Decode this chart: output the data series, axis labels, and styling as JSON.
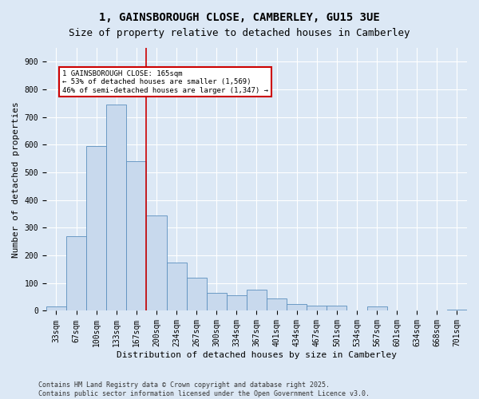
{
  "title_line1": "1, GAINSBOROUGH CLOSE, CAMBERLEY, GU15 3UE",
  "title_line2": "Size of property relative to detached houses in Camberley",
  "xlabel": "Distribution of detached houses by size in Camberley",
  "ylabel": "Number of detached properties",
  "categories": [
    "33sqm",
    "67sqm",
    "100sqm",
    "133sqm",
    "167sqm",
    "200sqm",
    "234sqm",
    "267sqm",
    "300sqm",
    "334sqm",
    "367sqm",
    "401sqm",
    "434sqm",
    "467sqm",
    "501sqm",
    "534sqm",
    "567sqm",
    "601sqm",
    "634sqm",
    "668sqm",
    "701sqm"
  ],
  "values": [
    15,
    270,
    595,
    745,
    540,
    345,
    175,
    120,
    65,
    55,
    75,
    45,
    25,
    20,
    20,
    0,
    15,
    0,
    0,
    0,
    5
  ],
  "bar_color": "#c8d9ed",
  "bar_edge_color": "#5b8fbe",
  "bg_color": "#dce8f5",
  "grid_color": "#ffffff",
  "fig_bg_color": "#dce8f5",
  "vline_x": 4.5,
  "vline_color": "#cc0000",
  "annotation_text": "1 GAINSBOROUGH CLOSE: 165sqm\n← 53% of detached houses are smaller (1,569)\n46% of semi-detached houses are larger (1,347) →",
  "annotation_box_color": "#cc0000",
  "ylim": [
    0,
    950
  ],
  "yticks": [
    0,
    100,
    200,
    300,
    400,
    500,
    600,
    700,
    800,
    900
  ],
  "footer": "Contains HM Land Registry data © Crown copyright and database right 2025.\nContains public sector information licensed under the Open Government Licence v3.0.",
  "title1_fontsize": 10,
  "title2_fontsize": 9,
  "label_fontsize": 8,
  "tick_fontsize": 7
}
